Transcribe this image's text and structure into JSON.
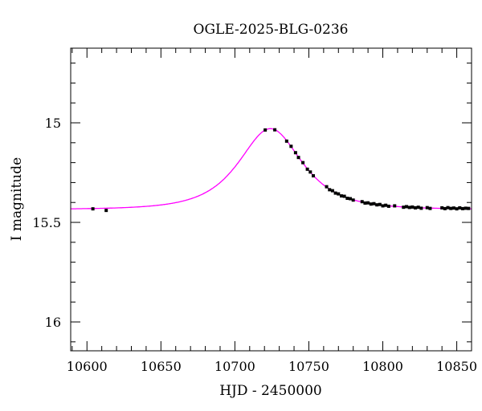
{
  "chart_data": {
    "type": "scatter",
    "title": "OGLE-2025-BLG-0236",
    "xlabel": "HJD - 2450000",
    "ylabel": "I magnitude",
    "xlim": [
      10589,
      10860
    ],
    "ylim": [
      16.145,
      14.625
    ],
    "y_inverted": true,
    "grid": false,
    "x_ticks": [
      10600,
      10650,
      10700,
      10750,
      10800,
      10850
    ],
    "x_tick_labels": [
      "10600",
      "10650",
      "10700",
      "10750",
      "10800",
      "10850"
    ],
    "y_ticks": [
      15,
      15.5,
      16
    ],
    "y_tick_labels": [
      "15",
      "15.5",
      "16"
    ],
    "colors": {
      "points": "#000000",
      "model": "#ff00ff"
    },
    "model": {
      "type": "point-lens fit",
      "t0": 10724,
      "u0": 0.87,
      "tE": 27.7,
      "baseline_mag": 15.435
    },
    "points": {
      "x": [
        10604,
        10613,
        10720.5,
        10727,
        10735,
        10738,
        10741,
        10743,
        10746,
        10749,
        10751,
        10753,
        10762,
        10764,
        10766,
        10768,
        10770,
        10772,
        10774,
        10776,
        10778,
        10780,
        10786,
        10788,
        10790,
        10792,
        10794,
        10796,
        10798,
        10800,
        10802,
        10804,
        10808,
        10814,
        10816,
        10818,
        10820,
        10822,
        10824,
        10826,
        10830,
        10832,
        10840,
        10842,
        10844,
        10846,
        10848,
        10850,
        10852,
        10854,
        10856,
        10858
      ],
      "y": [
        15.432,
        15.44,
        15.036,
        15.035,
        15.092,
        15.118,
        15.15,
        15.174,
        15.2,
        15.233,
        15.247,
        15.266,
        15.321,
        15.336,
        15.341,
        15.353,
        15.357,
        15.367,
        15.369,
        15.379,
        15.381,
        15.388,
        15.396,
        15.403,
        15.402,
        15.408,
        15.406,
        15.412,
        15.41,
        15.417,
        15.414,
        15.419,
        15.417,
        15.424,
        15.421,
        15.425,
        15.423,
        15.427,
        15.424,
        15.429,
        15.426,
        15.43,
        15.427,
        15.431,
        15.426,
        15.43,
        15.428,
        15.432,
        15.427,
        15.431,
        15.429,
        15.43
      ],
      "err": 0.006
    }
  }
}
